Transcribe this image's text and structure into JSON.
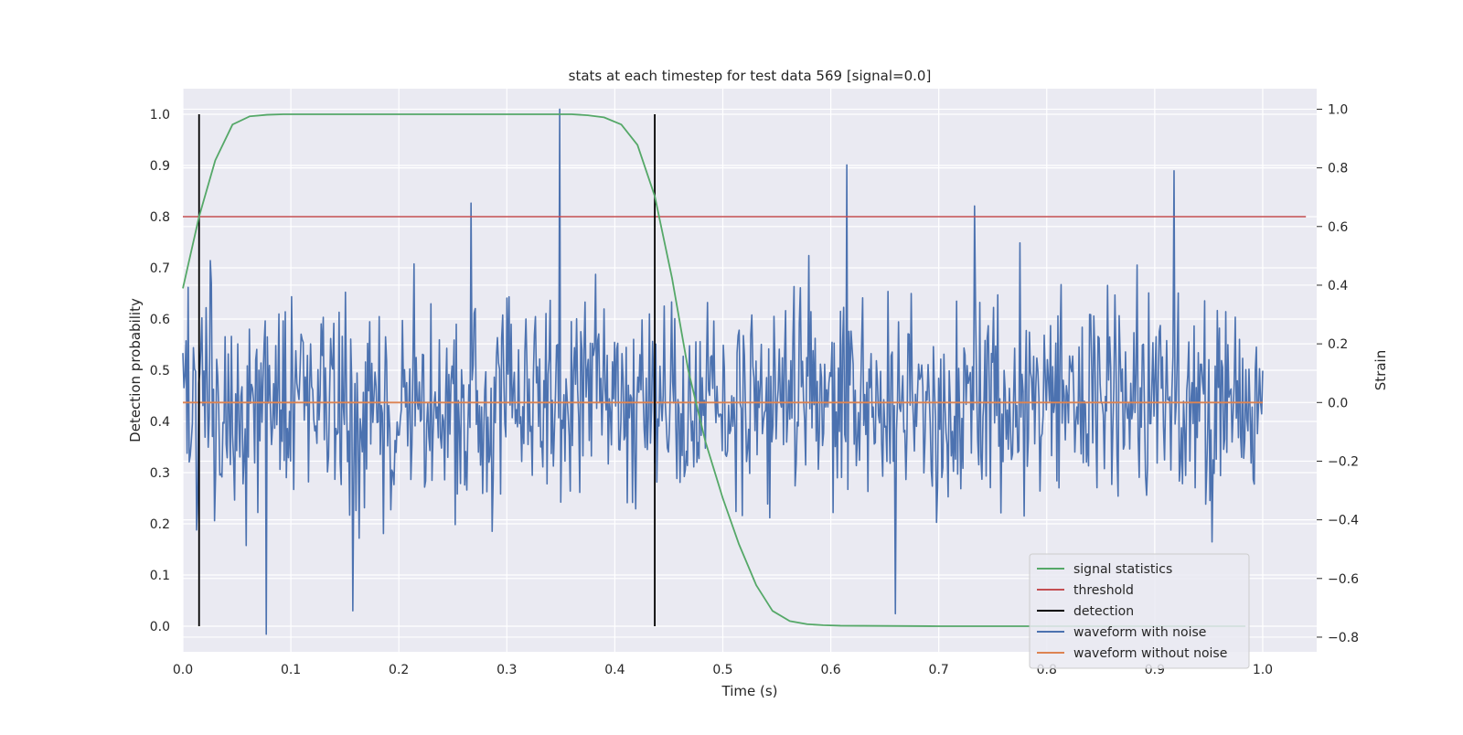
{
  "chart_data": {
    "type": "line",
    "title": "stats at each timestep for test data 569 [signal=0.0]",
    "xlabel": "Time (s)",
    "ylabel": "Detection probability",
    "ylabel_right": "Strain",
    "xlim": [
      0.0,
      1.05
    ],
    "ylim": [
      -0.05,
      1.05
    ],
    "ylim_right": [
      -0.85,
      1.07
    ],
    "x_ticks": [
      0.0,
      0.1,
      0.2,
      0.3,
      0.4,
      0.5,
      0.6,
      0.7,
      0.8,
      0.9,
      1.0
    ],
    "x_tick_labels": [
      "0.0",
      "0.1",
      "0.2",
      "0.3",
      "0.4",
      "0.5",
      "0.6",
      "0.7",
      "0.8",
      "0.9",
      "1.0"
    ],
    "y_ticks": [
      0.0,
      0.1,
      0.2,
      0.3,
      0.4,
      0.5,
      0.6,
      0.7,
      0.8,
      0.9,
      1.0
    ],
    "y_tick_labels": [
      "0.0",
      "0.1",
      "0.2",
      "0.3",
      "0.4",
      "0.5",
      "0.6",
      "0.7",
      "0.8",
      "0.9",
      "1.0"
    ],
    "y_right_ticks": [
      -0.8,
      -0.6,
      -0.4,
      -0.2,
      0.0,
      0.2,
      0.4,
      0.6,
      0.8,
      1.0
    ],
    "y_right_tick_labels": [
      "−0.8",
      "−0.6",
      "−0.4",
      "−0.2",
      "0.0",
      "0.2",
      "0.4",
      "0.6",
      "0.8",
      "1.0"
    ],
    "grid": true,
    "legend_position": "lower-right",
    "background_color": "#eaeaf2",
    "series": [
      {
        "name": "signal statistics",
        "axis": "left",
        "color": "#55a868",
        "x": [
          0.0,
          0.015,
          0.03,
          0.046,
          0.062,
          0.078,
          0.093,
          0.109,
          0.125,
          0.2,
          0.3,
          0.36,
          0.375,
          0.39,
          0.406,
          0.421,
          0.437,
          0.453,
          0.468,
          0.484,
          0.5,
          0.515,
          0.531,
          0.546,
          0.562,
          0.578,
          0.593,
          0.609,
          0.7,
          0.8,
          0.9,
          0.984
        ],
        "y": [
          0.66,
          0.8,
          0.91,
          0.98,
          0.996,
          0.999,
          1.0,
          1.0,
          1.0,
          1.0,
          1.0,
          1.0,
          0.998,
          0.994,
          0.98,
          0.94,
          0.84,
          0.68,
          0.5,
          0.36,
          0.25,
          0.16,
          0.08,
          0.03,
          0.01,
          0.004,
          0.002,
          0.001,
          0.0,
          0.0,
          0.0,
          0.0
        ]
      },
      {
        "name": "threshold",
        "axis": "left",
        "color": "#c44e52",
        "x": [
          0.0,
          1.04
        ],
        "y": [
          0.8,
          0.8
        ]
      },
      {
        "name": "detection",
        "axis": "left",
        "color": "#000000",
        "segments": [
          {
            "x": 0.015,
            "y0": 0.0,
            "y1": 1.0
          },
          {
            "x": 0.437,
            "y0": 0.0,
            "y1": 1.0
          }
        ]
      },
      {
        "name": "waveform with noise",
        "axis": "right",
        "color": "#4c72b0",
        "x_start": 0.0,
        "x_end": 1.0,
        "noise_std": 0.18,
        "seed": 569,
        "samples": 1024,
        "peaks": [
          {
            "x": 0.349,
            "y": 1.0
          },
          {
            "x": 0.615,
            "y": 0.81
          },
          {
            "x": 0.918,
            "y": 0.79
          },
          {
            "x": 0.267,
            "y": 0.68
          },
          {
            "x": 0.733,
            "y": 0.67
          },
          {
            "x": 0.077,
            "y": -0.79
          },
          {
            "x": 0.66,
            "y": -0.72
          },
          {
            "x": 0.157,
            "y": -0.71
          }
        ]
      },
      {
        "name": "waveform without noise",
        "axis": "right",
        "color": "#dd8452",
        "x": [
          0.0,
          1.0
        ],
        "y": [
          0.0,
          0.0
        ]
      }
    ]
  }
}
